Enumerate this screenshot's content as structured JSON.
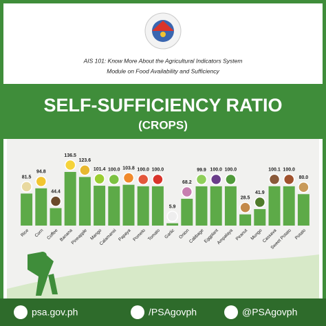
{
  "header": {
    "line1": "AIS 101: Know More About the Agricultural Indicators System",
    "line2": "Module on  Food Availability and Sufficiency"
  },
  "chart_data": {
    "type": "bar",
    "title": "SELF-SUFFICIENCY RATIO",
    "subtitle": "(CROPS)",
    "categories": [
      "Rice",
      "Corn",
      "Coffee",
      "Banana",
      "Pineapple",
      "Mango",
      "Calamansi",
      "Papaya",
      "Pomelo",
      "Tomato",
      "Garlic",
      "Onion",
      "Cabbage",
      "Eggplant",
      "Ampalaya",
      "Peanut",
      "Mungo",
      "Cassava",
      "Sweet Potato",
      "Potato"
    ],
    "values": [
      81.5,
      94.8,
      44.4,
      136.5,
      123.6,
      101.4,
      100,
      103.8,
      100,
      100,
      5.9,
      68.2,
      99.9,
      100,
      100,
      28.5,
      41.9,
      100.1,
      100,
      80
    ],
    "value_labels": [
      "81.5",
      "94.8",
      "44.4",
      "136.5",
      "123.6",
      "101.4",
      "100.0",
      "103.8",
      "100.0",
      "100.0",
      "5.9",
      "68.2",
      "99.9",
      "100.0",
      "100.0",
      "28.5",
      "41.9",
      "100.1",
      "100.0",
      "80.0"
    ],
    "color": "#5daa48"
  },
  "footer": {
    "website": "psa.gov.ph",
    "facebook": "/PSAgovph",
    "twitter": "@PSAgovph"
  }
}
